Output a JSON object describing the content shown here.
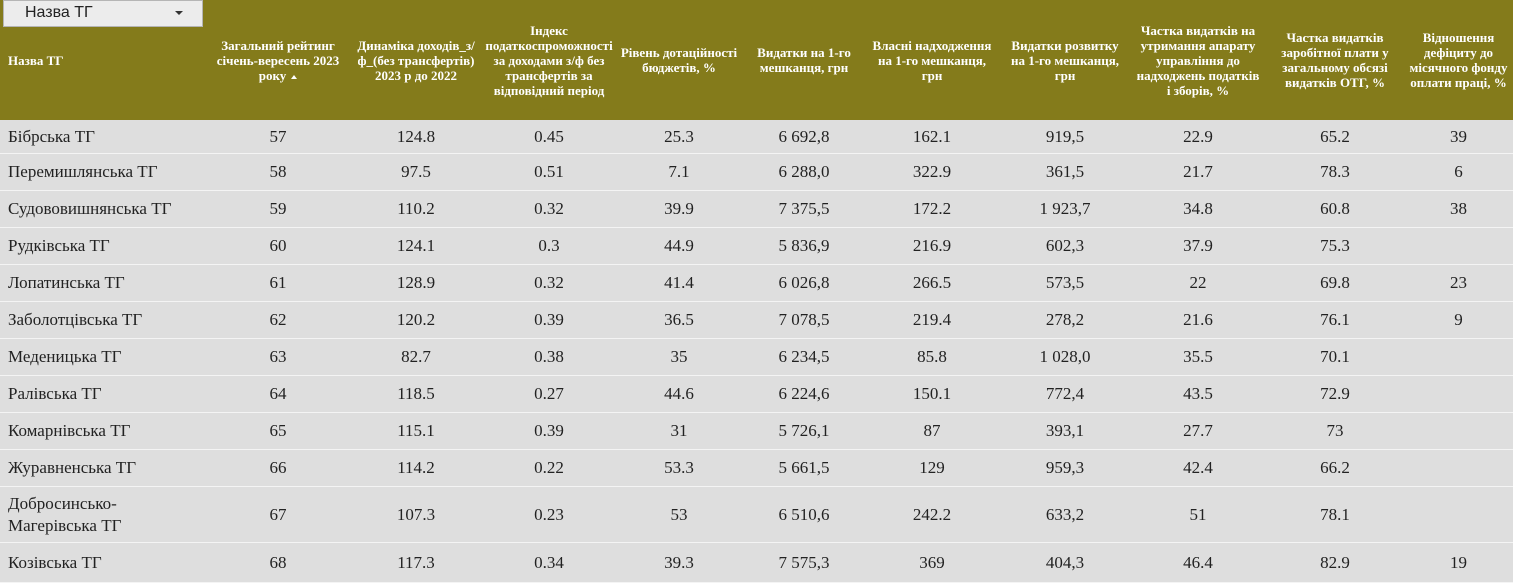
{
  "filter": {
    "label": "Назва ТГ"
  },
  "columns": [
    "Назва ТГ",
    "Загальний рейтинг січень-вересень 2023 року",
    "Динаміка доходів_з/ф_(без трансфертів) 2023 р до 2022",
    "Індекс податкоспроможності за доходами з/ф без трансфертів за відповідний період",
    "Рівень дотаційності бюджетів, %",
    "Видатки на 1-го мешканця, грн",
    "Власні надходження на 1-го мешканця, грн",
    "Видатки розвитку на 1-го мешканця, грн",
    "Частка видатків на утримання апарату управління до надходжень податків і зборів, %",
    "Частка видатків заробітної плати у загальному обсязі видатків ОТГ, %",
    "Відношення дефіциту до місячного фонду оплати праці, %"
  ],
  "rows": [
    [
      "Бібрська ТГ",
      "57",
      "124.8",
      "0.45",
      "25.3",
      "6 692,8",
      "162.1",
      "919,5",
      "22.9",
      "65.2",
      "39"
    ],
    [
      "Перемишлянська ТГ",
      "58",
      "97.5",
      "0.51",
      "7.1",
      "6 288,0",
      "322.9",
      "361,5",
      "21.7",
      "78.3",
      "6"
    ],
    [
      "Судововишнянська ТГ",
      "59",
      "110.2",
      "0.32",
      "39.9",
      "7 375,5",
      "172.2",
      "1 923,7",
      "34.8",
      "60.8",
      "38"
    ],
    [
      "Рудківська ТГ",
      "60",
      "124.1",
      "0.3",
      "44.9",
      "5 836,9",
      "216.9",
      "602,3",
      "37.9",
      "75.3",
      ""
    ],
    [
      "Лопатинська ТГ",
      "61",
      "128.9",
      "0.32",
      "41.4",
      "6 026,8",
      "266.5",
      "573,5",
      "22",
      "69.8",
      "23"
    ],
    [
      "Заболотцівська ТГ",
      "62",
      "120.2",
      "0.39",
      "36.5",
      "7 078,5",
      "219.4",
      "278,2",
      "21.6",
      "76.1",
      "9"
    ],
    [
      "Меденицька ТГ",
      "63",
      "82.7",
      "0.38",
      "35",
      "6 234,5",
      "85.8",
      "1 028,0",
      "35.5",
      "70.1",
      ""
    ],
    [
      "Ралівська ТГ",
      "64",
      "118.5",
      "0.27",
      "44.6",
      "6 224,6",
      "150.1",
      "772,4",
      "43.5",
      "72.9",
      ""
    ],
    [
      "Комарнівська ТГ",
      "65",
      "115.1",
      "0.39",
      "31",
      "5 726,1",
      "87",
      "393,1",
      "27.7",
      "73",
      ""
    ],
    [
      "Журавненська ТГ",
      "66",
      "114.2",
      "0.22",
      "53.3",
      "5 661,5",
      "129",
      "959,3",
      "42.4",
      "66.2",
      ""
    ],
    [
      "Добросинсько-Магерівська ТГ",
      "67",
      "107.3",
      "0.23",
      "53",
      "6 510,6",
      "242.2",
      "633,2",
      "51",
      "78.1",
      ""
    ],
    [
      "Козівська ТГ",
      "68",
      "117.3",
      "0.34",
      "39.3",
      "7 575,3",
      "369",
      "404,3",
      "46.4",
      "82.9",
      "19"
    ]
  ]
}
